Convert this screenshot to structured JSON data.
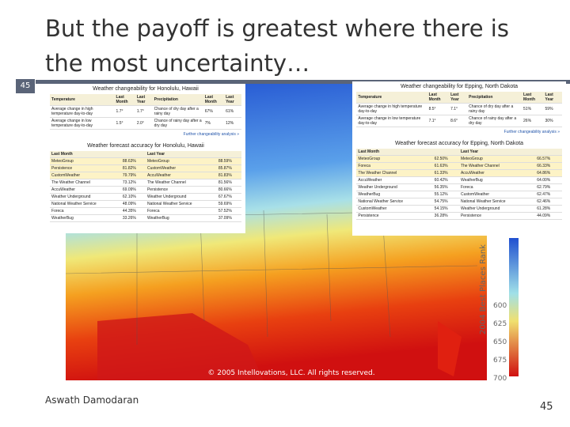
{
  "title": "But the payoff is greatest where there is the most uncertainty…",
  "slide_number": "45",
  "footer": {
    "author": "Aswath Damodaran",
    "page": "45"
  },
  "map": {
    "copyright": "© 2005 Intellovations, LLC. All rights reserved.",
    "scale_title": "2004 Best Places Rank",
    "scale_labels": [
      "600",
      "625",
      "650",
      "675",
      "700"
    ]
  },
  "panels": [
    {
      "changeability": {
        "title": "Weather changeability for Honolulu, Hawaii",
        "header": [
          "Temperature",
          "Last Month",
          "Last Year",
          "Precipitation",
          "Last Month",
          "Last Year"
        ],
        "rows": [
          [
            "Average change in high temperature day-to-day",
            "1.7°",
            "1.7°",
            "Chance of dry day after a rainy day",
            "67%",
            "61%"
          ],
          [
            "Average change in low temperature day-to-day",
            "1.5°",
            "2.0°",
            "Chance of rainy day after a dry day",
            "7%",
            "12%"
          ]
        ],
        "link": "Further changeability analysis »"
      },
      "accuracy": {
        "title": "Weather forecast accuracy for Honolulu, Hawaii",
        "header": [
          "Last Month",
          "Last Year"
        ],
        "rows": [
          [
            "MeteoGroup",
            "88.63%",
            "MeteoGroup",
            "88.59%"
          ],
          [
            "Persistence",
            "81.82%",
            "CustomWeather",
            "85.87%"
          ],
          [
            "CustomWeather",
            "79.79%",
            "AccuWeather",
            "81.83%"
          ],
          [
            "The Weather Channel",
            "73.12%",
            "The Weather Channel",
            "81.56%"
          ],
          [
            "AccuWeather",
            "69.09%",
            "Persistence",
            "80.66%"
          ],
          [
            "Weather Underground",
            "62.10%",
            "Weather Underground",
            "67.67%"
          ],
          [
            "National Weather Service",
            "48.09%",
            "National Weather Service",
            "59.69%"
          ],
          [
            "Foreca",
            "44.35%",
            "Foreca",
            "57.52%"
          ],
          [
            "WeatherBug",
            "33.26%",
            "WeatherBug",
            "37.09%"
          ]
        ]
      }
    },
    {
      "changeability": {
        "title": "Weather changeability for Epping, North Dakota",
        "header": [
          "Temperature",
          "Last Month",
          "Last Year",
          "Precipitation",
          "Last Month",
          "Last Year"
        ],
        "rows": [
          [
            "Average change in high temperature day-to-day",
            "8.5°",
            "7.1°",
            "Chance of dry day after a rainy day",
            "51%",
            "59%"
          ],
          [
            "Average change in low temperature day-to-day",
            "7.1°",
            "8.6°",
            "Chance of rainy day after a dry day",
            "26%",
            "30%"
          ]
        ],
        "link": "Further changeability analysis »"
      },
      "accuracy": {
        "title": "Weather forecast accuracy for Epping, North Dakota",
        "header": [
          "Last Month",
          "Last Year"
        ],
        "rows": [
          [
            "MeteoGroup",
            "62.50%",
            "MeteoGroup",
            "66.57%"
          ],
          [
            "Foreca",
            "61.63%",
            "The Weather Channel",
            "66.33%"
          ],
          [
            "The Weather Channel",
            "61.33%",
            "AccuWeather",
            "64.86%"
          ],
          [
            "AccuWeather",
            "60.42%",
            "WeatherBug",
            "64.00%"
          ],
          [
            "Weather Underground",
            "56.35%",
            "Foreca",
            "62.79%"
          ],
          [
            "WeatherBug",
            "55.12%",
            "CustomWeather",
            "62.47%"
          ],
          [
            "National Weather Service",
            "54.75%",
            "National Weather Service",
            "62.46%"
          ],
          [
            "CustomWeather",
            "54.15%",
            "Weather Underground",
            "61.28%"
          ],
          [
            "Persistence",
            "36.28%",
            "Persistence",
            "44.09%"
          ]
        ]
      }
    }
  ]
}
